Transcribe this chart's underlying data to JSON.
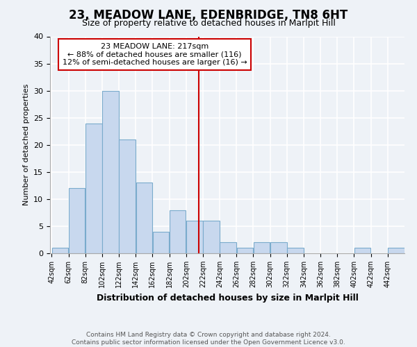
{
  "title": "23, MEADOW LANE, EDENBRIDGE, TN8 6HT",
  "subtitle": "Size of property relative to detached houses in Marlpit Hill",
  "xlabel": "Distribution of detached houses by size in Marlpit Hill",
  "ylabel": "Number of detached properties",
  "bin_edges": [
    42,
    62,
    82,
    102,
    122,
    142,
    162,
    182,
    202,
    222,
    242,
    262,
    282,
    302,
    322,
    342,
    362,
    382,
    402,
    422,
    442
  ],
  "bin_counts": [
    1,
    12,
    24,
    30,
    21,
    13,
    4,
    8,
    6,
    6,
    2,
    1,
    2,
    2,
    1,
    0,
    0,
    0,
    1,
    0,
    1
  ],
  "bar_color": "#c8d8ee",
  "bar_edge_color": "#7aabcc",
  "vline_x": 217,
  "vline_color": "#cc0000",
  "annotation_lines": [
    "23 MEADOW LANE: 217sqm",
    "← 88% of detached houses are smaller (116)",
    "12% of semi-detached houses are larger (16) →"
  ],
  "annotation_box_color": "#ffffff",
  "annotation_box_edge": "#cc0000",
  "ylim": [
    0,
    40
  ],
  "xlim": [
    42,
    462
  ],
  "tick_labels": [
    "42sqm",
    "62sqm",
    "82sqm",
    "102sqm",
    "122sqm",
    "142sqm",
    "162sqm",
    "182sqm",
    "202sqm",
    "222sqm",
    "242sqm",
    "262sqm",
    "282sqm",
    "302sqm",
    "322sqm",
    "342sqm",
    "362sqm",
    "382sqm",
    "402sqm",
    "422sqm",
    "442sqm"
  ],
  "tick_positions": [
    42,
    62,
    82,
    102,
    122,
    142,
    162,
    182,
    202,
    222,
    242,
    262,
    282,
    302,
    322,
    342,
    362,
    382,
    402,
    422,
    442
  ],
  "yticks": [
    0,
    5,
    10,
    15,
    20,
    25,
    30,
    35,
    40
  ],
  "footer_line1": "Contains HM Land Registry data © Crown copyright and database right 2024.",
  "footer_line2": "Contains public sector information licensed under the Open Government Licence v3.0.",
  "background_color": "#eef2f7",
  "plot_bg_color": "#eef2f7",
  "grid_color": "#ffffff",
  "title_fontsize": 12,
  "subtitle_fontsize": 9,
  "ylabel_fontsize": 8,
  "xlabel_fontsize": 9,
  "tick_fontsize": 7,
  "annotation_fontsize": 8,
  "footer_fontsize": 6.5
}
